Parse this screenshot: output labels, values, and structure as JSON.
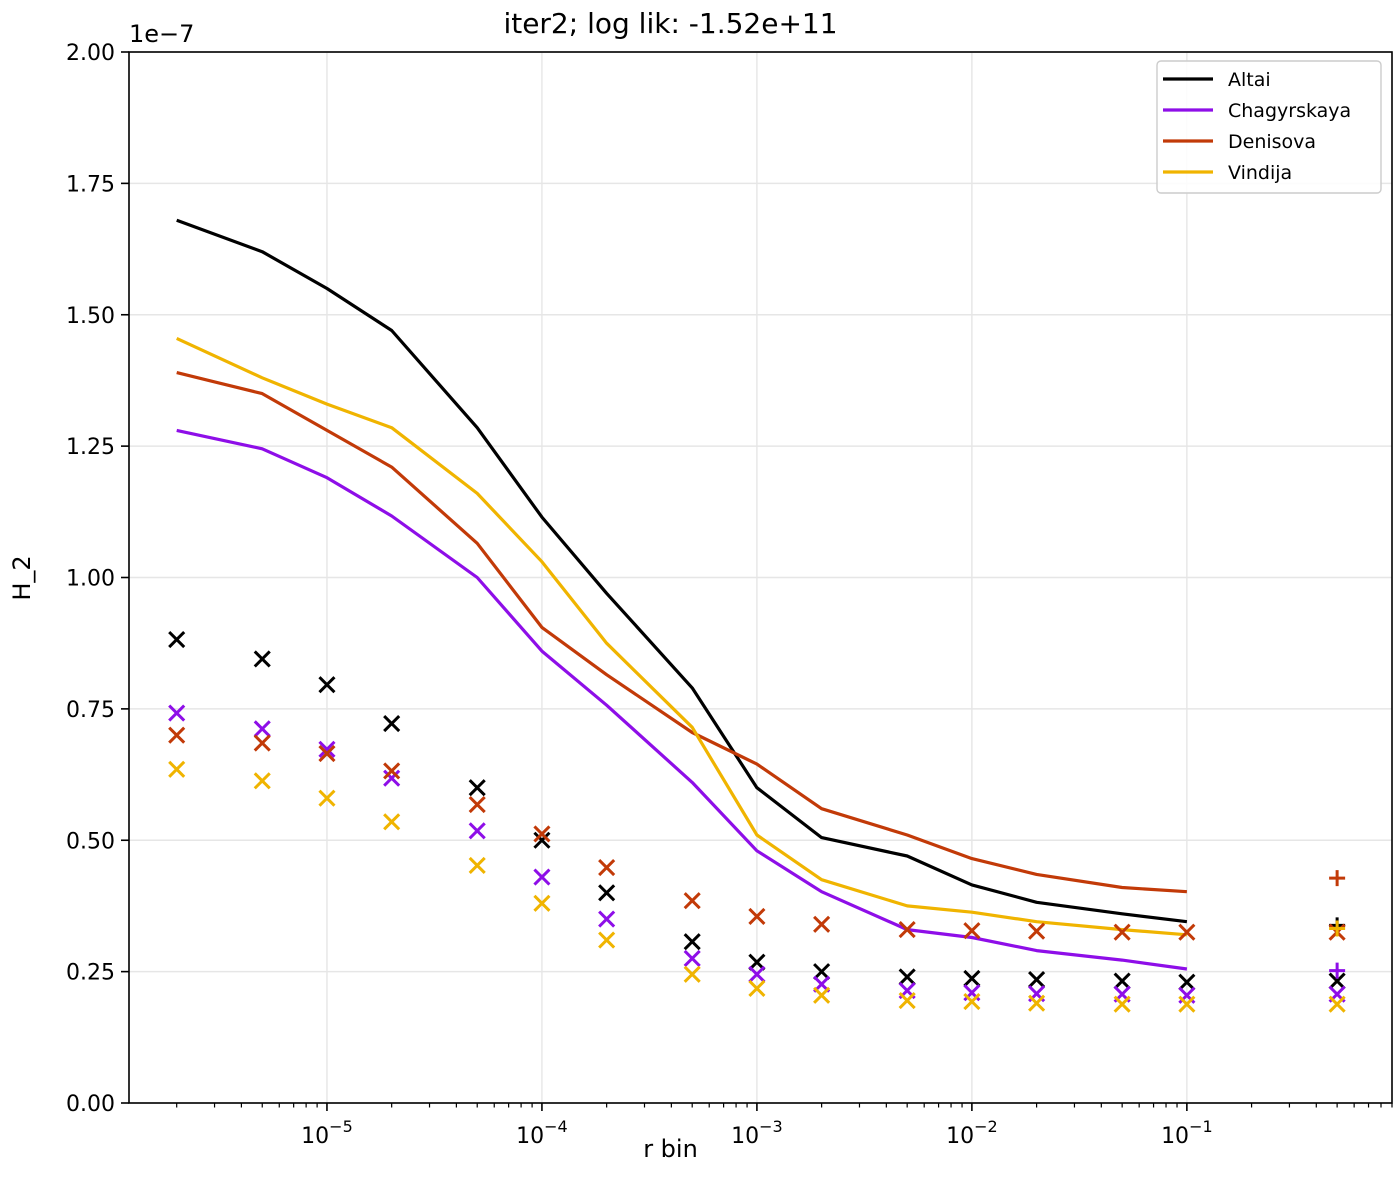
{
  "chart_data": {
    "type": "line",
    "title": "iter2; log lik: -1.52e+11",
    "xlabel": "r bin",
    "ylabel": "H_2",
    "y_offset_label": "1e−7",
    "x_scale": "log",
    "xlim": [
      1.2e-06,
      0.9
    ],
    "ylim": [
      0,
      2.0
    ],
    "y_units": "1e-7",
    "grid": true,
    "legend_position": "top-right",
    "x_ticks": [
      {
        "value": 1e-05,
        "base": "10",
        "exp": "−5"
      },
      {
        "value": 0.0001,
        "base": "10",
        "exp": "−4"
      },
      {
        "value": 0.001,
        "base": "10",
        "exp": "−3"
      },
      {
        "value": 0.01,
        "base": "10",
        "exp": "−2"
      },
      {
        "value": 0.1,
        "base": "10",
        "exp": "−1"
      }
    ],
    "y_ticks": [
      {
        "value": 0.0,
        "label": "0.00"
      },
      {
        "value": 0.25,
        "label": "0.25"
      },
      {
        "value": 0.5,
        "label": "0.50"
      },
      {
        "value": 0.75,
        "label": "0.75"
      },
      {
        "value": 1.0,
        "label": "1.00"
      },
      {
        "value": 1.25,
        "label": "1.25"
      },
      {
        "value": 1.5,
        "label": "1.50"
      },
      {
        "value": 1.75,
        "label": "1.75"
      },
      {
        "value": 2.0,
        "label": "2.00"
      }
    ],
    "x": [
      2e-06,
      5e-06,
      1e-05,
      2e-05,
      5e-05,
      0.0001,
      0.0002,
      0.0005,
      0.001,
      0.002,
      0.005,
      0.01,
      0.02,
      0.05,
      0.1
    ],
    "x_extra": 0.5,
    "series": [
      {
        "name": "Altai",
        "color": "#000000",
        "line": [
          1.68,
          1.62,
          1.55,
          1.47,
          1.285,
          1.115,
          0.97,
          0.79,
          0.6,
          0.505,
          0.47,
          0.415,
          0.382,
          0.36,
          0.345
        ],
        "x_markers": [
          0.882,
          0.845,
          0.796,
          0.722,
          0.6,
          0.5,
          0.4,
          0.307,
          0.268,
          0.25,
          0.24,
          0.237,
          0.235,
          0.232,
          0.23
        ],
        "extra_x_marker": 0.232,
        "extra_plus_marker": 0.338
      },
      {
        "name": "Chagyrskaya",
        "color": "#8e0ee8",
        "line": [
          1.28,
          1.245,
          1.19,
          1.117,
          1.0,
          0.86,
          0.757,
          0.61,
          0.48,
          0.402,
          0.33,
          0.315,
          0.29,
          0.272,
          0.255
        ],
        "x_markers": [
          0.742,
          0.712,
          0.673,
          0.618,
          0.518,
          0.43,
          0.35,
          0.275,
          0.245,
          0.226,
          0.214,
          0.21,
          0.208,
          0.207,
          0.205
        ],
        "extra_x_marker": 0.207,
        "extra_plus_marker": 0.252
      },
      {
        "name": "Denisova",
        "color": "#c23a08",
        "line": [
          1.39,
          1.35,
          1.28,
          1.21,
          1.065,
          0.905,
          0.815,
          0.705,
          0.645,
          0.56,
          0.51,
          0.465,
          0.435,
          0.41,
          0.402
        ],
        "x_markers": [
          0.7,
          0.685,
          0.665,
          0.632,
          0.568,
          0.512,
          0.448,
          0.385,
          0.355,
          0.34,
          0.33,
          0.328,
          0.327,
          0.325,
          0.325
        ],
        "extra_x_marker": 0.325,
        "extra_plus_marker": 0.428
      },
      {
        "name": "Vindija",
        "color": "#f0b400",
        "line": [
          1.455,
          1.38,
          1.33,
          1.285,
          1.16,
          1.03,
          0.875,
          0.715,
          0.51,
          0.425,
          0.375,
          0.363,
          0.345,
          0.33,
          0.32
        ],
        "x_markers": [
          0.635,
          0.613,
          0.58,
          0.535,
          0.452,
          0.38,
          0.31,
          0.245,
          0.218,
          0.205,
          0.195,
          0.193,
          0.19,
          0.188,
          0.188
        ],
        "extra_x_marker": 0.188,
        "extra_plus_marker": 0.332
      }
    ]
  }
}
